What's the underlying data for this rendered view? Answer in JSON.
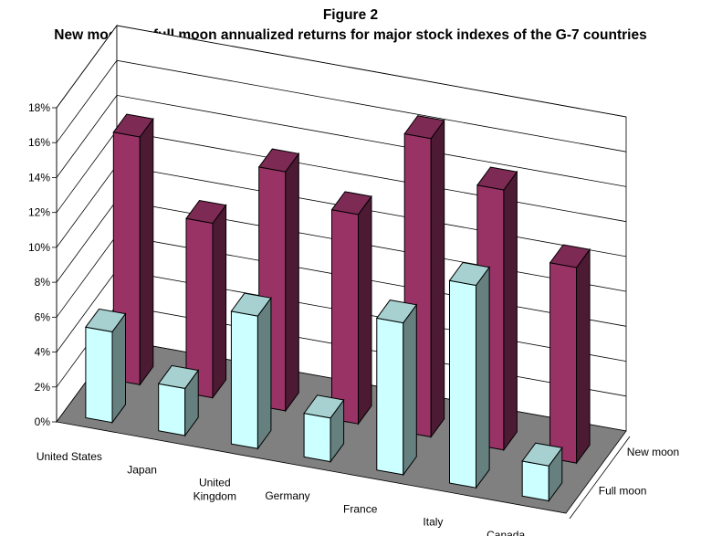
{
  "chart_data": {
    "type": "bar",
    "subtype": "3d-clustered-depth",
    "figure_label": "Figure 2",
    "title": "New moon vs. full moon annualized returns for major stock indexes of the G-7 countries",
    "xlabel": "",
    "ylabel": "",
    "categories": [
      "United States",
      "Japan",
      "United Kingdom",
      "Germany",
      "France",
      "Italy",
      "Canada"
    ],
    "category_labels": [
      [
        "United States"
      ],
      [
        "Japan"
      ],
      [
        "United",
        "Kingdom"
      ],
      [
        "Germany"
      ],
      [
        "France"
      ],
      [
        "Italy"
      ],
      [
        "Canada"
      ]
    ],
    "series": [
      {
        "name": "New moon",
        "color": "#993366",
        "values": [
          14.2,
          10.0,
          13.7,
          12.0,
          17.1,
          14.9,
          11.2
        ]
      },
      {
        "name": "Full moon",
        "color": "#ccffff",
        "values": [
          5.2,
          2.7,
          7.6,
          2.5,
          8.7,
          11.6,
          2.0
        ]
      }
    ],
    "ylim": [
      0,
      18
    ],
    "yticks": [
      "0%",
      "2%",
      "4%",
      "6%",
      "8%",
      "10%",
      "12%",
      "14%",
      "16%",
      "18%"
    ],
    "grid": true,
    "floor_color": "#808080"
  }
}
